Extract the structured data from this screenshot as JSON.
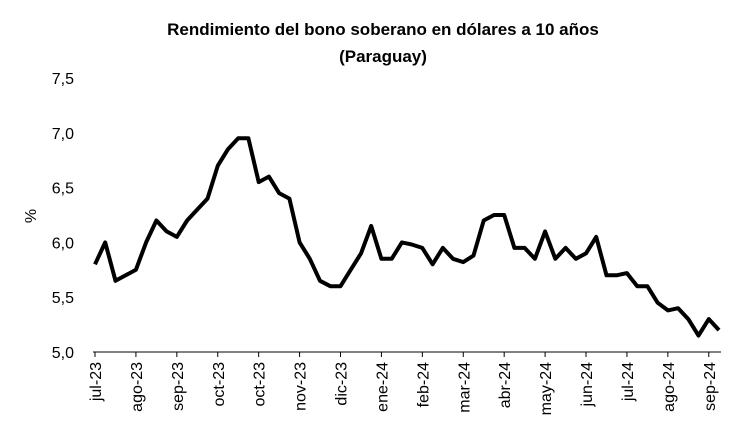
{
  "chart_data": {
    "type": "line",
    "title": [
      "Rendimiento del bono soberano en dólares a 10 años",
      "(Paraguay)"
    ],
    "y_label": "%",
    "categories": [
      "jul-23",
      null,
      null,
      null,
      "ago-23",
      null,
      null,
      null,
      "sep-23",
      null,
      null,
      null,
      "oct-23",
      null,
      null,
      null,
      "oct-23",
      null,
      null,
      null,
      "nov-23",
      null,
      null,
      null,
      "dic-23",
      null,
      null,
      null,
      "ene-24",
      null,
      null,
      null,
      "feb-24",
      null,
      null,
      null,
      "mar-24",
      null,
      null,
      null,
      "abr-24",
      null,
      null,
      null,
      "may-24",
      null,
      null,
      null,
      "jun-24",
      null,
      null,
      null,
      "jul-24",
      null,
      null,
      null,
      "ago-24",
      null,
      null,
      null,
      "sep-24",
      null
    ],
    "values": [
      5.8,
      6.0,
      5.65,
      5.7,
      5.75,
      6.0,
      6.2,
      6.1,
      6.05,
      6.2,
      6.3,
      6.4,
      6.7,
      6.85,
      6.95,
      6.95,
      6.55,
      6.6,
      6.45,
      6.4,
      6.0,
      5.85,
      5.65,
      5.6,
      5.6,
      5.75,
      5.9,
      6.15,
      5.85,
      5.85,
      6.0,
      5.98,
      5.95,
      5.8,
      5.95,
      5.85,
      5.82,
      5.88,
      6.2,
      6.25,
      6.25,
      5.95,
      5.95,
      5.85,
      6.1,
      5.85,
      5.95,
      5.85,
      5.9,
      6.05,
      5.7,
      5.7,
      5.72,
      5.6,
      5.6,
      5.45,
      5.38,
      5.4,
      5.3,
      5.15,
      5.3,
      5.2
    ],
    "color": "#000000",
    "ylim": [
      5.0,
      7.5
    ],
    "yticks": [
      {
        "value": 5.0,
        "label": "5,0"
      },
      {
        "value": 5.5,
        "label": "5,5"
      },
      {
        "value": 6.0,
        "label": "6,0"
      },
      {
        "value": 6.5,
        "label": "6,5"
      },
      {
        "value": 7.0,
        "label": "7,0"
      },
      {
        "value": 7.5,
        "label": "7,5"
      }
    ],
    "grid": false
  }
}
